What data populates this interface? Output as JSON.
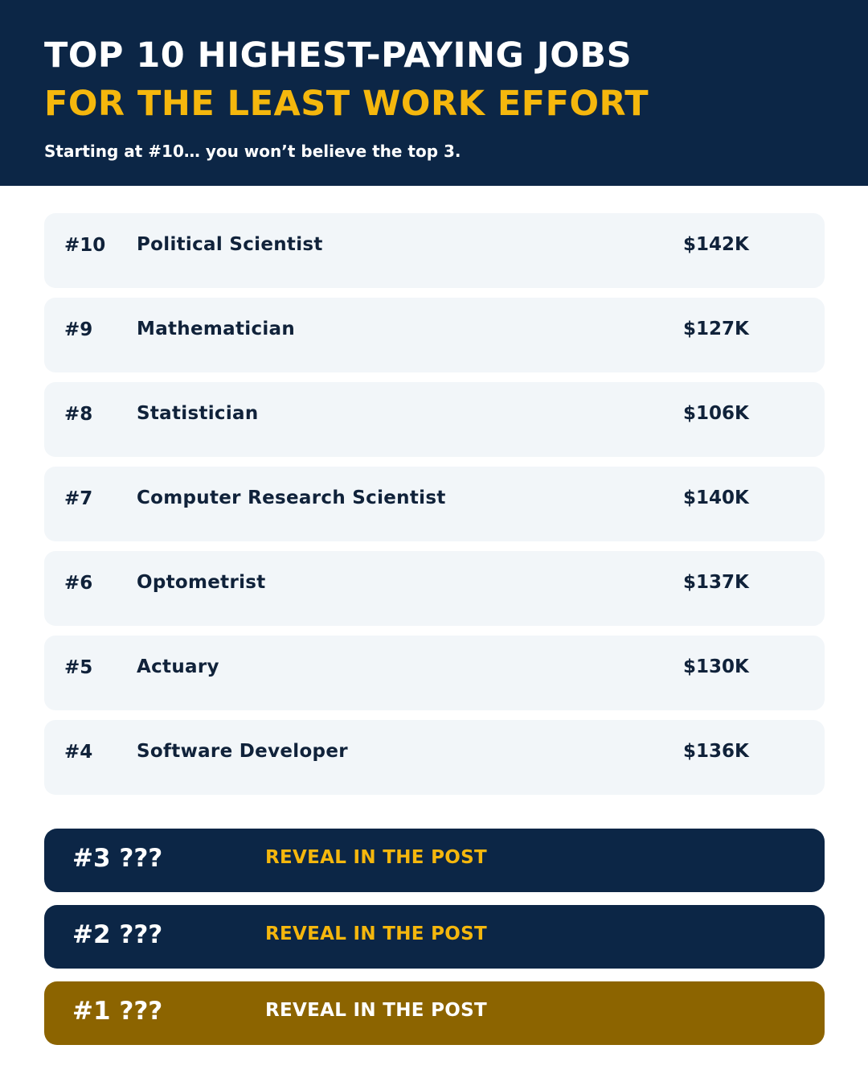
{
  "header": {
    "title_line1": "TOP 10 HIGHEST-PAYING JOBS",
    "title_line2": "FOR THE LEAST WORK EFFORT",
    "subtitle": "Starting at #10… you won’t believe the top 3."
  },
  "colors": {
    "navy": "#0c2646",
    "gold_text": "#f5b70d",
    "gold_bar": "#8c6400",
    "row_bg": "#f2f6f9"
  },
  "jobs": [
    {
      "rank": "#10",
      "title": "Political Scientist",
      "salary": "$142K"
    },
    {
      "rank": "#9",
      "title": "Mathematician",
      "salary": "$127K"
    },
    {
      "rank": "#8",
      "title": "Statistician",
      "salary": "$106K"
    },
    {
      "rank": "#7",
      "title": "Computer Research Scientist",
      "salary": "$140K"
    },
    {
      "rank": "#6",
      "title": "Optometrist",
      "salary": "$137K"
    },
    {
      "rank": "#5",
      "title": "Actuary",
      "salary": "$130K"
    },
    {
      "rank": "#4",
      "title": "Software Developer",
      "salary": "$136K"
    }
  ],
  "reveals": [
    {
      "label": "#3 ???",
      "cta": "REVEAL IN THE POST"
    },
    {
      "label": "#2 ???",
      "cta": "REVEAL IN THE POST"
    },
    {
      "label": "#1 ???",
      "cta": "REVEAL IN THE POST"
    }
  ]
}
